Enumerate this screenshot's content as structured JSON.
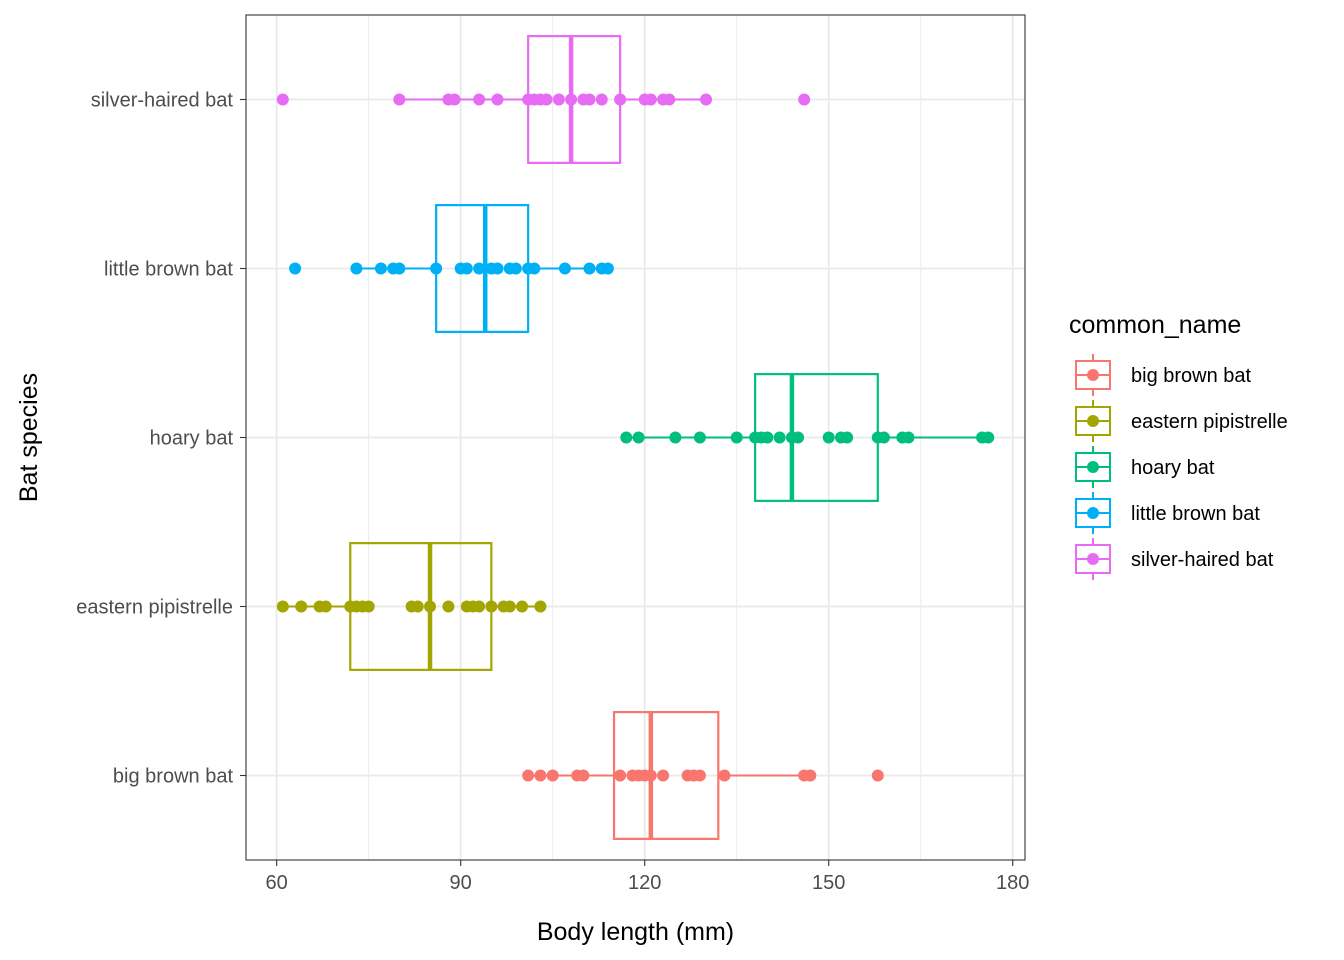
{
  "chart_data": {
    "type": "boxplot",
    "title": "",
    "xlabel": "Body length (mm)",
    "ylabel": "Bat species",
    "xlim": [
      55,
      182
    ],
    "x_ticks": [
      60,
      90,
      120,
      150,
      180
    ],
    "grid": true,
    "legend": {
      "title": "common_name",
      "position": "right"
    },
    "categories": [
      "big brown bat",
      "eastern pipistrelle",
      "hoary bat",
      "little brown bat",
      "silver-haired bat"
    ],
    "series": [
      {
        "name": "big brown bat",
        "color": "#F8766D",
        "box": {
          "whisker_low": 101,
          "q1": 115,
          "median": 121,
          "q3": 132,
          "whisker_high": 147
        },
        "points": [
          101,
          103,
          105,
          109,
          110,
          116,
          118,
          119,
          120,
          121,
          123,
          127,
          128,
          129,
          133,
          146,
          147,
          158
        ]
      },
      {
        "name": "eastern pipistrelle",
        "color": "#A3A500",
        "box": {
          "whisker_low": 61,
          "q1": 72,
          "median": 85,
          "q3": 95,
          "whisker_high": 103
        },
        "points": [
          61,
          64,
          67,
          68,
          72,
          73,
          74,
          75,
          82,
          83,
          85,
          88,
          91,
          92,
          93,
          95,
          97,
          98,
          100,
          103
        ]
      },
      {
        "name": "hoary bat",
        "color": "#00BF7D",
        "box": {
          "whisker_low": 117,
          "q1": 138,
          "median": 144,
          "q3": 158,
          "whisker_high": 176
        },
        "points": [
          117,
          119,
          125,
          129,
          135,
          138,
          139,
          140,
          142,
          144,
          145,
          150,
          152,
          153,
          158,
          159,
          162,
          163,
          175,
          176
        ]
      },
      {
        "name": "little brown bat",
        "color": "#00B0F6",
        "box": {
          "whisker_low": 73,
          "q1": 86,
          "median": 94,
          "q3": 101,
          "whisker_high": 114
        },
        "points": [
          63,
          73,
          77,
          79,
          80,
          86,
          90,
          91,
          93,
          95,
          96,
          98,
          99,
          101,
          102,
          107,
          111,
          113,
          114
        ]
      },
      {
        "name": "silver-haired bat",
        "color": "#E76BF3",
        "box": {
          "whisker_low": 80,
          "q1": 101,
          "median": 108,
          "q3": 116,
          "whisker_high": 130
        },
        "points": [
          61,
          80,
          88,
          89,
          93,
          96,
          101,
          102,
          103,
          104,
          106,
          108,
          110,
          111,
          113,
          116,
          120,
          121,
          123,
          124,
          130,
          146
        ]
      }
    ]
  }
}
